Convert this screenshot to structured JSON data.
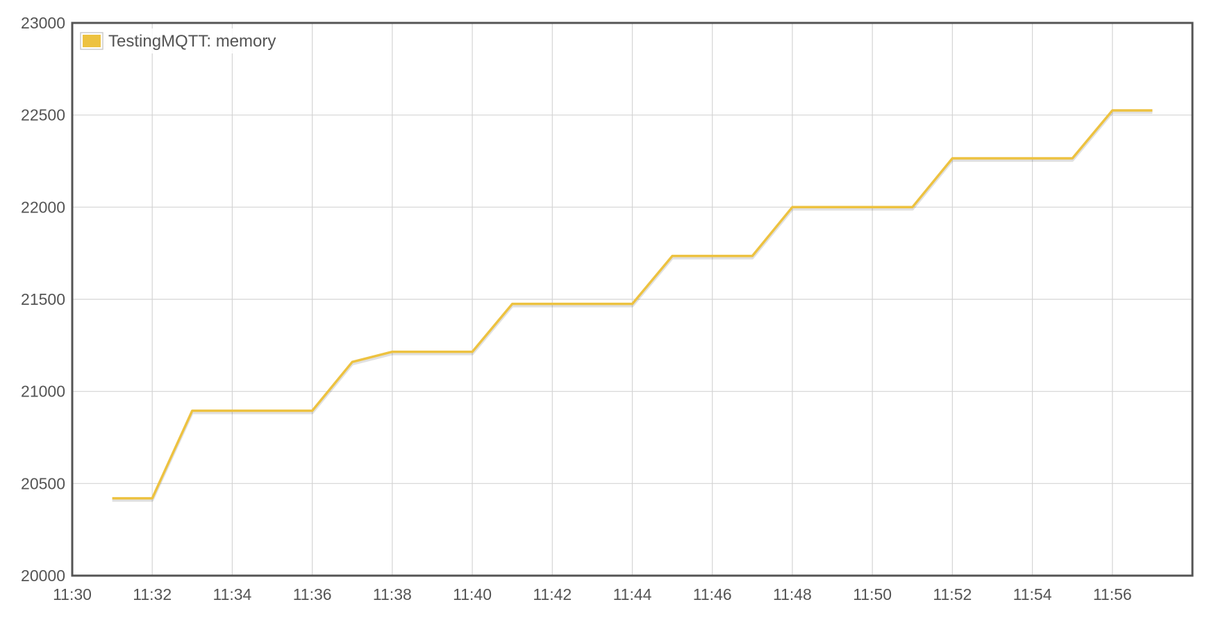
{
  "chart_data": {
    "type": "line",
    "title": "",
    "xlabel": "",
    "ylabel": "",
    "x_unit": "minutes",
    "xlim": [
      "11:30",
      "11:58"
    ],
    "ylim": [
      20000,
      23000
    ],
    "x_ticks": [
      "11:30",
      "11:32",
      "11:34",
      "11:36",
      "11:38",
      "11:40",
      "11:42",
      "11:44",
      "11:46",
      "11:48",
      "11:50",
      "11:52",
      "11:54",
      "11:56"
    ],
    "y_ticks": [
      20000,
      20500,
      21000,
      21500,
      22000,
      22500,
      23000
    ],
    "grid": true,
    "legend_position": "top-left",
    "series": [
      {
        "name": "TestingMQTT: memory",
        "color": "#edc240",
        "x": [
          "11:31",
          "11:32",
          "11:33",
          "11:34",
          "11:35",
          "11:36",
          "11:37",
          "11:38",
          "11:39",
          "11:40",
          "11:41",
          "11:42",
          "11:43",
          "11:44",
          "11:45",
          "11:46",
          "11:47",
          "11:48",
          "11:49",
          "11:50",
          "11:51",
          "11:52",
          "11:53",
          "11:54",
          "11:55",
          "11:56",
          "11:57"
        ],
        "values": [
          20420,
          20420,
          20895,
          20895,
          20895,
          20895,
          21160,
          21215,
          21215,
          21215,
          21475,
          21475,
          21475,
          21475,
          21735,
          21735,
          21735,
          22000,
          22000,
          22000,
          22000,
          22265,
          22265,
          22265,
          22265,
          22525,
          22525
        ]
      }
    ]
  }
}
